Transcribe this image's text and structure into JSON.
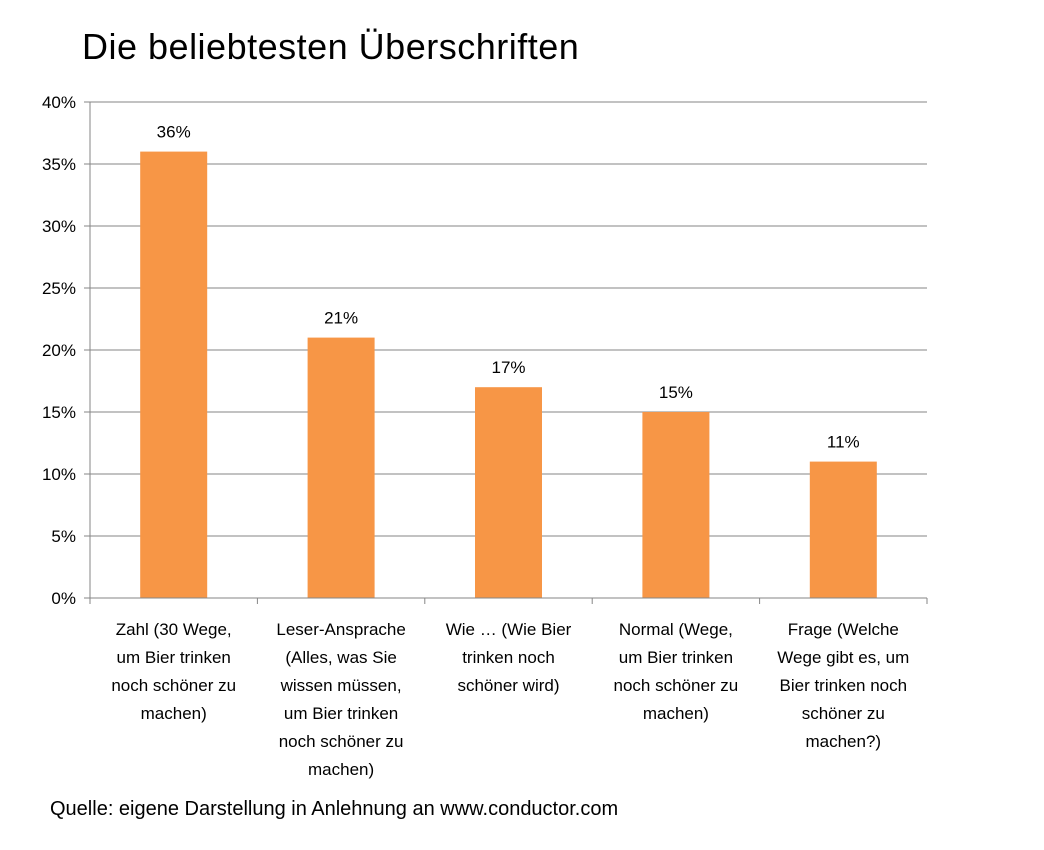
{
  "chart_data": {
    "type": "bar",
    "title": "Die beliebtesten Überschriften",
    "categories": [
      "Zahl (30 Wege, um Bier trinken noch schöner zu machen)",
      "Leser-Ansprache (Alles, was Sie wissen müssen, um Bier trinken noch schöner zu machen)",
      "Wie … (Wie Bier trinken noch schöner wird)",
      "Normal (Wege, um Bier trinken noch schöner zu machen)",
      "Frage (Welche Wege gibt es, um Bier trinken noch schöner zu machen?)"
    ],
    "category_lines": [
      [
        "Zahl (30 Wege,",
        "um Bier trinken",
        "noch schöner zu",
        "machen)"
      ],
      [
        "Leser-Ansprache",
        "(Alles, was Sie",
        "wissen müssen,",
        "um Bier trinken",
        "noch schöner zu",
        "machen)"
      ],
      [
        "Wie … (Wie Bier",
        "trinken noch",
        "schöner wird)"
      ],
      [
        "Normal (Wege,",
        "um Bier trinken",
        "noch schöner zu",
        "machen)"
      ],
      [
        "Frage (Welche",
        "Wege gibt es, um",
        "Bier trinken noch",
        "schöner zu",
        "machen?)"
      ]
    ],
    "values": [
      36,
      21,
      17,
      15,
      11
    ],
    "data_labels": [
      "36%",
      "21%",
      "17%",
      "15%",
      "11%"
    ],
    "ylim": [
      0,
      40
    ],
    "yticks": [
      0,
      5,
      10,
      15,
      20,
      25,
      30,
      35,
      40
    ],
    "ytick_labels": [
      "0%",
      "5%",
      "10%",
      "15%",
      "20%",
      "25%",
      "30%",
      "35%",
      "40%"
    ],
    "xlabel": "",
    "ylabel": "",
    "grid": true,
    "legend": "none",
    "bar_color": "#F79646",
    "grid_color": "#868686"
  },
  "source_note": "Quelle: eigene Darstellung in Anlehnung an www.conductor.com"
}
